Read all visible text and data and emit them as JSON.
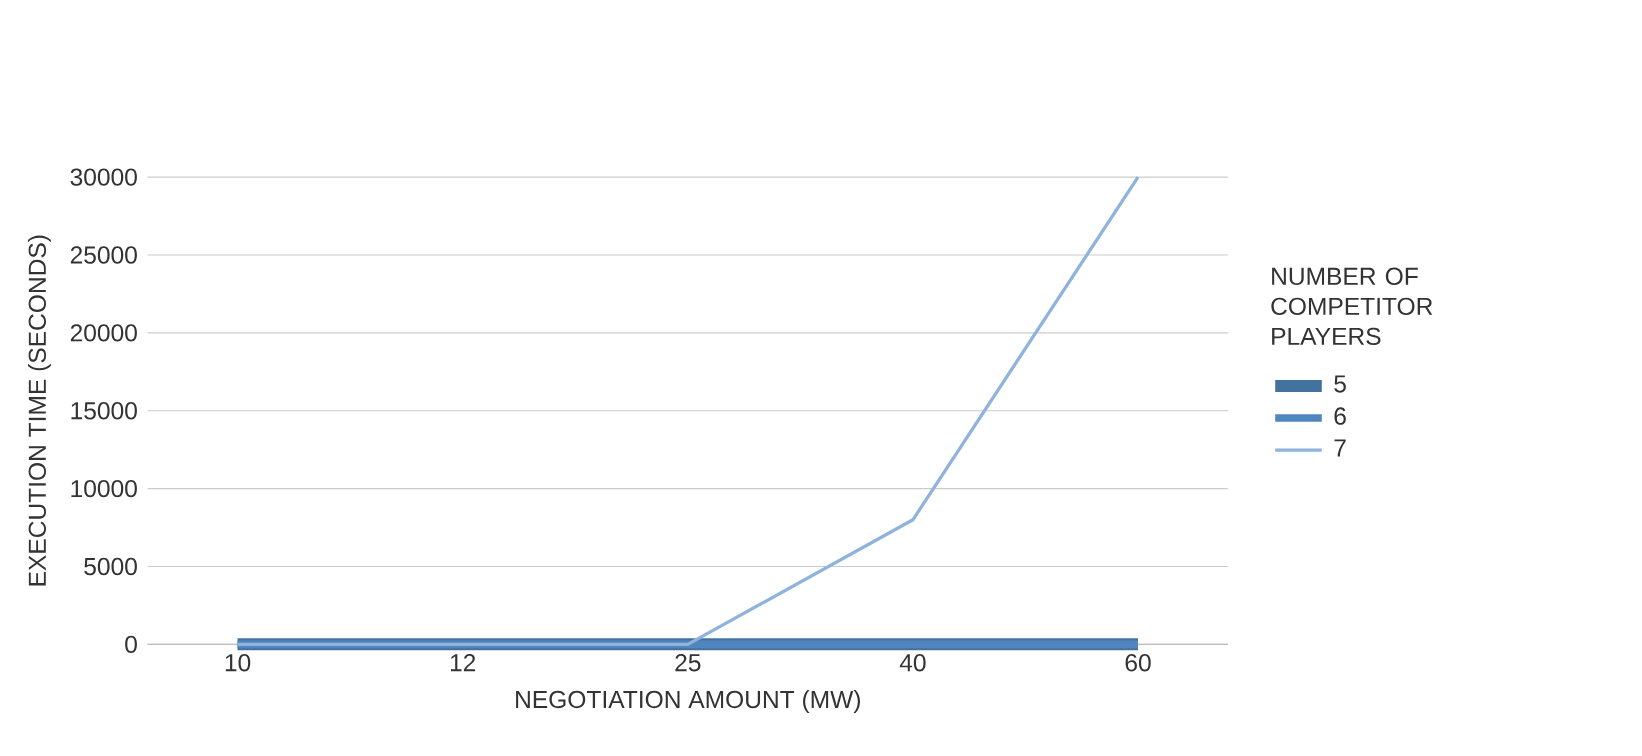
{
  "chart_data": {
    "type": "line",
    "xlabel": "NEGOTIATION AMOUNT (MW)",
    "ylabel": "EXECUTION TIME (SECONDS)",
    "legend_title": "NUMBER OF COMPETITOR PLAYERS",
    "categories": [
      "10",
      "12",
      "25",
      "40",
      "60"
    ],
    "series": [
      {
        "name": "5",
        "color": "#44729e",
        "values": [
          0,
          0,
          0,
          0,
          0
        ]
      },
      {
        "name": "6",
        "color": "#4f86c0",
        "values": [
          0,
          0,
          0,
          0,
          0
        ]
      },
      {
        "name": "7",
        "color": "#8fb3dd",
        "values": [
          0,
          0,
          0,
          8000,
          30000
        ]
      }
    ],
    "ylim": [
      0,
      30000
    ],
    "yticks": [
      0,
      5000,
      10000,
      15000,
      20000,
      25000,
      30000
    ],
    "grid": "y",
    "legend": "right",
    "marker": "none",
    "line_style": "solid"
  }
}
